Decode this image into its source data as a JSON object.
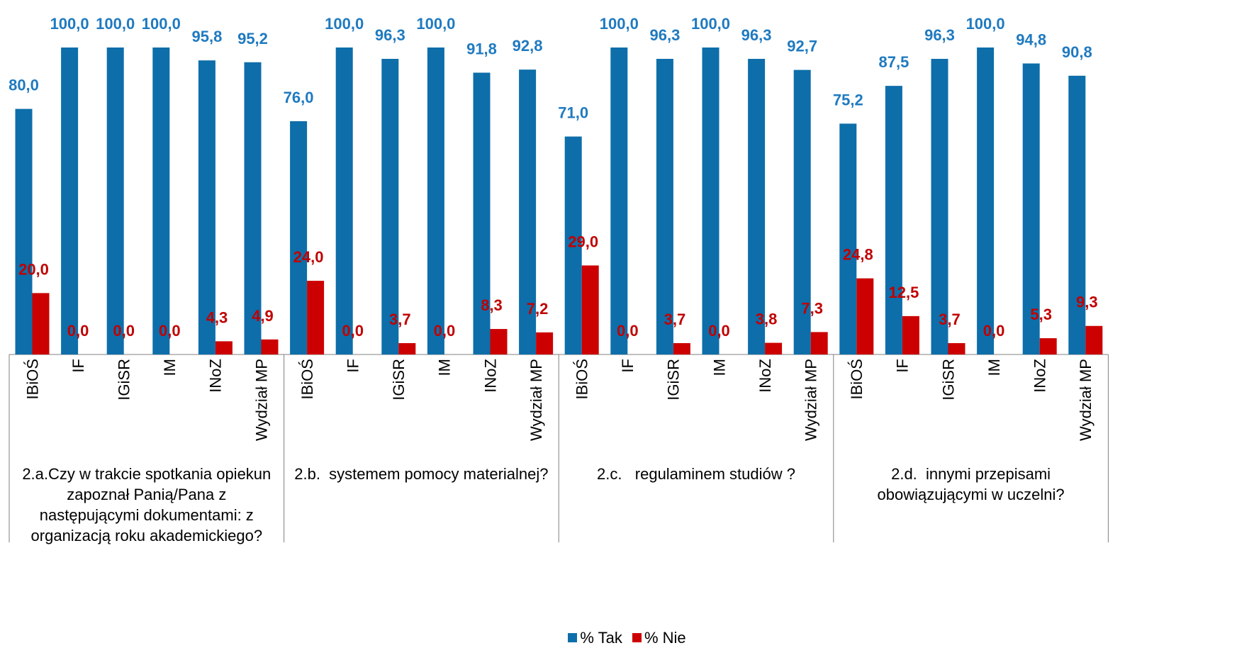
{
  "chart_data": {
    "type": "bar",
    "colors": {
      "tak": "#0D6EAA",
      "nie": "#CC0000",
      "tak_label": "#1F7AC0",
      "nie_label": "#C00000"
    },
    "categories": [
      "IBiOŚ",
      "IF",
      "IGiSR",
      "IM",
      "INoZ",
      "Wydział MP"
    ],
    "groups": [
      {
        "label": "2.a.Czy w trakcie spotkania opiekun zapoznał Panią/Pana z następującymi dokumentami: z organizacją roku akademickiego?",
        "label_lines": [
          "2.a.Czy w trakcie spotkania opiekun",
          "zapoznał Panią/Pana z",
          "następującymi dokumentami: z",
          "organizacją roku akademickiego?"
        ],
        "tak": [
          80.0,
          100.0,
          100.0,
          100.0,
          95.8,
          95.2
        ],
        "tak_labels": [
          "80,0",
          "100,0",
          "100,0",
          "100,0",
          "95,8",
          "95,2"
        ],
        "nie": [
          20.0,
          0.0,
          0.0,
          0.0,
          4.3,
          4.9
        ],
        "nie_labels": [
          "20,0",
          "0,0",
          "0,0",
          "0,0",
          "4,3",
          "4,9"
        ]
      },
      {
        "label": "2.b. systemem pomocy materialnej?",
        "label_lines": [
          "2.b.  systemem pomocy materialnej?"
        ],
        "tak": [
          76.0,
          100.0,
          96.3,
          100.0,
          91.8,
          92.8
        ],
        "tak_labels": [
          "76,0",
          "100,0",
          "96,3",
          "100,0",
          "91,8",
          "92,8"
        ],
        "nie": [
          24.0,
          0.0,
          3.7,
          0.0,
          8.3,
          7.2
        ],
        "nie_labels": [
          "24,0",
          "0,0",
          "3,7",
          "0,0",
          "8,3",
          "7,2"
        ]
      },
      {
        "label": "2.c. regulaminem studiów ?",
        "label_lines": [
          "2.c.   regulaminem studiów ?"
        ],
        "tak": [
          71.0,
          100.0,
          96.3,
          100.0,
          96.3,
          92.7
        ],
        "tak_labels": [
          "71,0",
          "100,0",
          "96,3",
          "100,0",
          "96,3",
          "92,7"
        ],
        "nie": [
          29.0,
          0.0,
          3.7,
          0.0,
          3.8,
          7.3
        ],
        "nie_labels": [
          "29,0",
          "0,0",
          "3,7",
          "0,0",
          "3,8",
          "7,3"
        ]
      },
      {
        "label": "2.d. innymi przepisami obowiązującymi w uczelni?",
        "label_lines": [
          "2.d.  innymi przepisami",
          "obowiązującymi w uczelni?"
        ],
        "tak": [
          75.2,
          87.5,
          96.3,
          100.0,
          94.8,
          90.8
        ],
        "tak_labels": [
          "75,2",
          "87,5",
          "96,3",
          "100,0",
          "94,8",
          "90,8"
        ],
        "nie": [
          24.8,
          12.5,
          3.7,
          0.0,
          5.3,
          9.3
        ],
        "nie_labels": [
          "24,8",
          "12,5",
          "3,7",
          "0,0",
          "5,3",
          "9,3"
        ]
      }
    ],
    "series": [
      {
        "name": "% Tak",
        "key": "tak"
      },
      {
        "name": "% Nie",
        "key": "nie"
      }
    ],
    "ylim": [
      0,
      100
    ],
    "grid": false,
    "legend_position": "bottom-center"
  },
  "legend": {
    "tak": "% Tak",
    "nie": "% Nie"
  }
}
